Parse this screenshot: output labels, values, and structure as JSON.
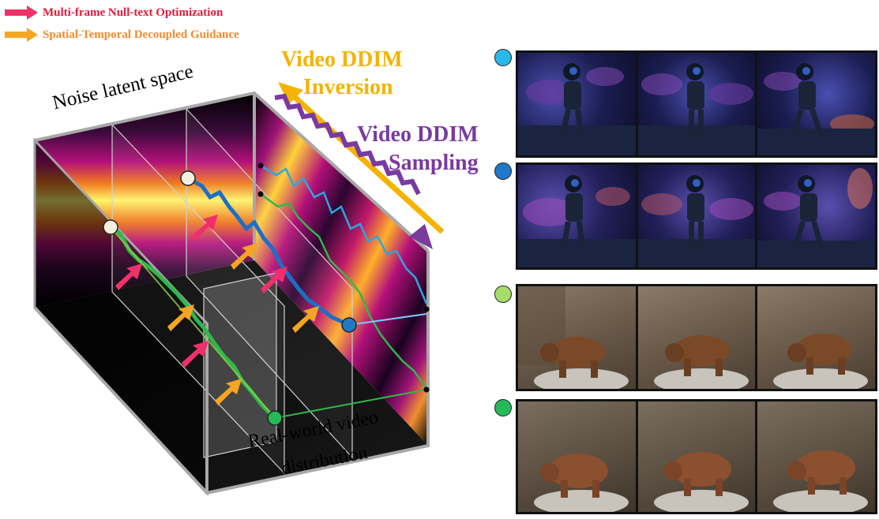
{
  "legend": {
    "items": [
      {
        "label": "Multi-frame Null-text Optimization",
        "color": "#e8173a",
        "arrow_color": "#f0306a"
      },
      {
        "label": "Spatial-Temporal Decoupled Guidance",
        "color": "#f08a2a",
        "arrow_color": "#f4a622"
      }
    ]
  },
  "diagram": {
    "noise_label": "Noise latent space",
    "real_label_line1": "Real-world video",
    "real_label_line2": "distribution",
    "inversion_line1": "Video DDIM",
    "inversion_line2": "Inversion",
    "sampling_line1": "Video DDIM",
    "sampling_line2": "Sampling",
    "colors": {
      "inversion": "#f5b300",
      "sampling": "#7a3aa0",
      "cyan_path": "#2aa7e0",
      "blue_path": "#1a70c8",
      "green_path": "#2fb84a",
      "light_green_path": "#8fd44a"
    }
  },
  "strips": [
    {
      "dot_color": "#2ab8e8",
      "scene": "astronaut walking on water at night",
      "frames": 3
    },
    {
      "dot_color": "#2178c8",
      "scene": "astronaut walking on water at night",
      "frames": 3
    },
    {
      "dot_color": "#a6dc6a",
      "scene": "brown bear walking on rocks",
      "frames": 3
    },
    {
      "dot_color": "#27b85a",
      "scene": "brown bear walking on rocks",
      "frames": 3
    }
  ]
}
